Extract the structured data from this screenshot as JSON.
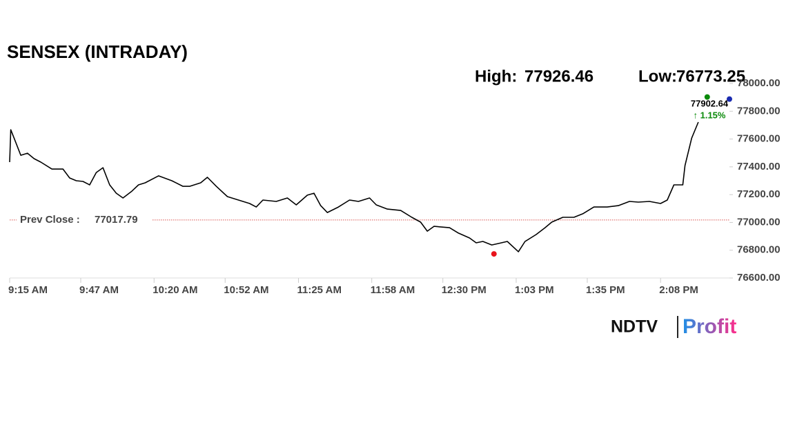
{
  "chart_data": {
    "type": "line",
    "title": "SENSEX (INTRADAY)",
    "high_label": "High:",
    "high": 77926.46,
    "low_label": "Low:",
    "low": 76773.25,
    "low_x": 218,
    "prev_close_label": "Prev Close :",
    "prev_close": 77017.79,
    "prev_close_color": "#d9534f",
    "current": 77902.64,
    "current_x": 314,
    "current_color": "#0a8a0a",
    "change_label": "↑ 1.15%",
    "x": [
      0,
      0.5,
      2,
      5,
      8,
      11,
      14,
      19,
      24,
      27,
      30,
      33,
      36,
      39,
      42,
      45,
      48,
      51,
      55,
      58,
      61,
      67,
      73,
      78,
      81,
      86,
      89,
      93,
      98,
      103,
      108,
      111,
      114,
      120,
      125,
      129,
      134,
      137,
      140,
      143,
      148,
      153,
      157,
      162,
      165,
      170,
      176,
      181,
      185,
      188,
      191,
      198,
      202,
      207,
      210,
      213,
      217,
      220,
      224,
      229,
      232,
      237,
      241,
      244,
      249,
      254,
      258,
      263,
      269,
      274,
      279,
      283,
      288,
      293,
      296,
      299,
      303,
      304,
      307,
      310
    ],
    "series": [
      {
        "name": "SENSEX",
        "color": "#000000",
        "values": [
          77434,
          77667,
          77607,
          77483,
          77498,
          77459,
          77434,
          77384,
          77384,
          77320,
          77300,
          77295,
          77270,
          77359,
          77394,
          77270,
          77210,
          77176,
          77225,
          77270,
          77285,
          77335,
          77300,
          77260,
          77260,
          77285,
          77325,
          77260,
          77186,
          77161,
          77136,
          77111,
          77161,
          77151,
          77176,
          77126,
          77196,
          77210,
          77121,
          77071,
          77111,
          77161,
          77151,
          77176,
          77126,
          77096,
          77086,
          77037,
          77002,
          76937,
          76972,
          76962,
          76923,
          76888,
          76853,
          76863,
          76838,
          76848,
          76863,
          76789,
          76863,
          76913,
          76962,
          77002,
          77037,
          77037,
          77062,
          77111,
          77111,
          77121,
          77151,
          77146,
          77151,
          77136,
          77161,
          77270,
          77270,
          77409,
          77607,
          77722
        ]
      }
    ],
    "xlim": [
      0,
      324
    ],
    "xticks": [
      {
        "value": 0,
        "label": "9:15 AM"
      },
      {
        "value": 32,
        "label": "9:47 AM"
      },
      {
        "value": 65,
        "label": "10:20 AM"
      },
      {
        "value": 97,
        "label": "10:52 AM"
      },
      {
        "value": 130,
        "label": "11:25 AM"
      },
      {
        "value": 163,
        "label": "11:58 AM"
      },
      {
        "value": 195,
        "label": "12:30 PM"
      },
      {
        "value": 228,
        "label": "1:03 PM"
      },
      {
        "value": 260,
        "label": "1:35 PM"
      },
      {
        "value": 293,
        "label": "2:08 PM"
      }
    ],
    "ylim": [
      76600,
      78000
    ],
    "yticks": [
      {
        "value": 76600,
        "label": "76600.00"
      },
      {
        "value": 76800,
        "label": "76800.00"
      },
      {
        "value": 77000,
        "label": "77000.00"
      },
      {
        "value": 77200,
        "label": "77200.00"
      },
      {
        "value": 77400,
        "label": "77400.00"
      },
      {
        "value": 77600,
        "label": "77600.00"
      },
      {
        "value": 77800,
        "label": "77800.00"
      },
      {
        "value": 78000,
        "label": "78000.00"
      }
    ],
    "low_color": "#e8141c"
  },
  "logo": {
    "left": "NDTV",
    "right": "Profit"
  }
}
